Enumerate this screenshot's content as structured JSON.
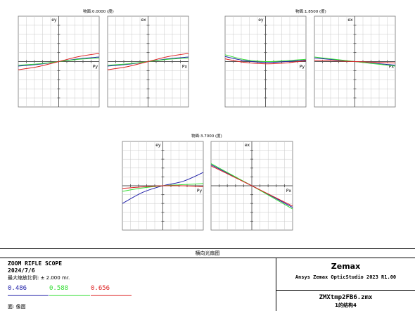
{
  "window_title": "横向光扇图",
  "plots": [
    {
      "title": "物面:0.0000 (度)",
      "panels": [
        {
          "axis_label": "ey",
          "pupil_label": "Py"
        },
        {
          "axis_label": "ex",
          "pupil_label": "Px"
        }
      ]
    },
    {
      "title": "物面:1.8500 (度)",
      "panels": [
        {
          "axis_label": "ey",
          "pupil_label": "Py"
        },
        {
          "axis_label": "ex",
          "pupil_label": "Px"
        }
      ]
    },
    {
      "title": "物面:3.7000 (度)",
      "panels": [
        {
          "axis_label": "ey",
          "pupil_label": "Py"
        },
        {
          "axis_label": "ex",
          "pupil_label": "Px"
        }
      ]
    }
  ],
  "info": {
    "system_name": "ZOOM RIFLE SCOPE",
    "date": "2024/7/6",
    "scale": "最大缩放比例: ± 2.000 mr.",
    "surface": "面: 像面",
    "wavelengths": [
      {
        "label": "0.486",
        "color": "#1f1fa8"
      },
      {
        "label": "0.588",
        "color": "#33dd33"
      },
      {
        "label": "0.656",
        "color": "#dd2222"
      }
    ],
    "company": "Zemax",
    "software": "Ansys Zemax OpticStudio 2023 R1.00",
    "filename": "ZMXtmp2FB6.zmx",
    "config": "1的结构4"
  },
  "chart_data": {
    "type": "line",
    "title": "横向光扇图",
    "xlabel": "Py / Px",
    "ylabel": "ey / ex",
    "xlim": [
      -1,
      1
    ],
    "ylim": [
      -2,
      2
    ],
    "units": "mr",
    "grid": true,
    "fields": [
      {
        "title": "物面:0.0000 (度)",
        "panels": [
          {
            "name": "ey vs Py",
            "series": [
              {
                "name": "0.486",
                "color": "#1f1fa8",
                "x": [
                  -1,
                  -0.5,
                  0,
                  0.5,
                  1
                ],
                "y": [
                  -0.2,
                  -0.12,
                  0,
                  0.12,
                  0.2
                ]
              },
              {
                "name": "0.588",
                "color": "#33dd33",
                "x": [
                  -1,
                  -0.5,
                  0,
                  0.5,
                  1
                ],
                "y": [
                  -0.16,
                  -0.1,
                  0,
                  0.1,
                  0.16
                ]
              },
              {
                "name": "0.656",
                "color": "#dd2222",
                "x": [
                  -1,
                  -0.5,
                  0,
                  0.5,
                  1
                ],
                "y": [
                  -0.36,
                  -0.22,
                  0,
                  0.22,
                  0.36
                ]
              }
            ]
          },
          {
            "name": "ex vs Px",
            "series": [
              {
                "name": "0.486",
                "color": "#1f1fa8",
                "x": [
                  -1,
                  -0.5,
                  0,
                  0.5,
                  1
                ],
                "y": [
                  -0.2,
                  -0.12,
                  0,
                  0.12,
                  0.2
                ]
              },
              {
                "name": "0.588",
                "color": "#33dd33",
                "x": [
                  -1,
                  -0.5,
                  0,
                  0.5,
                  1
                ],
                "y": [
                  -0.16,
                  -0.1,
                  0,
                  0.1,
                  0.16
                ]
              },
              {
                "name": "0.656",
                "color": "#dd2222",
                "x": [
                  -1,
                  -0.5,
                  0,
                  0.5,
                  1
                ],
                "y": [
                  -0.36,
                  -0.22,
                  0,
                  0.22,
                  0.36
                ]
              }
            ]
          }
        ]
      },
      {
        "title": "物面:1.8500 (度)",
        "panels": [
          {
            "name": "ey vs Py",
            "series": [
              {
                "name": "0.486",
                "color": "#1f1fa8",
                "x": [
                  -1,
                  -0.5,
                  0,
                  0.5,
                  1
                ],
                "y": [
                  0.22,
                  0.04,
                  -0.04,
                  0.0,
                  0.06
                ]
              },
              {
                "name": "0.588",
                "color": "#33dd33",
                "x": [
                  -1,
                  -0.5,
                  0,
                  0.5,
                  1
                ],
                "y": [
                  0.3,
                  0.08,
                  0.0,
                  0.04,
                  0.1
                ]
              },
              {
                "name": "0.656",
                "color": "#dd2222",
                "x": [
                  -1,
                  -0.5,
                  0,
                  0.5,
                  1
                ],
                "y": [
                  0.12,
                  -0.04,
                  -0.1,
                  -0.06,
                  0.04
                ]
              }
            ]
          },
          {
            "name": "ex vs Px",
            "series": [
              {
                "name": "0.486",
                "color": "#1f1fa8",
                "x": [
                  -1,
                  -0.5,
                  0,
                  0.5,
                  1
                ],
                "y": [
                  0.16,
                  0.08,
                  0,
                  -0.08,
                  -0.16
                ]
              },
              {
                "name": "0.588",
                "color": "#33dd33",
                "x": [
                  -1,
                  -0.5,
                  0,
                  0.5,
                  1
                ],
                "y": [
                  0.2,
                  0.1,
                  0,
                  -0.1,
                  -0.2
                ]
              },
              {
                "name": "0.656",
                "color": "#dd2222",
                "x": [
                  -1,
                  -0.5,
                  0,
                  0.5,
                  1
                ],
                "y": [
                  0.06,
                  0.03,
                  0,
                  -0.03,
                  -0.06
                ]
              }
            ]
          }
        ]
      },
      {
        "title": "物面:3.7000 (度)",
        "panels": [
          {
            "name": "ey vs Py",
            "series": [
              {
                "name": "0.486",
                "color": "#1f1fa8",
                "x": [
                  -1,
                  -0.5,
                  0,
                  0.5,
                  1
                ],
                "y": [
                  -0.8,
                  -0.3,
                  0,
                  0.2,
                  0.6
                ]
              },
              {
                "name": "0.588",
                "color": "#33dd33",
                "x": [
                  -1,
                  -0.5,
                  0,
                  0.5,
                  1
                ],
                "y": [
                  -0.25,
                  -0.1,
                  0,
                  0.05,
                  0.1
                ]
              },
              {
                "name": "0.656",
                "color": "#dd2222",
                "x": [
                  -1,
                  -0.5,
                  0,
                  0.5,
                  1
                ],
                "y": [
                  -0.12,
                  -0.05,
                  0,
                  0.0,
                  -0.04
                ]
              }
            ]
          },
          {
            "name": "ex vs Px",
            "series": [
              {
                "name": "0.486",
                "color": "#1f1fa8",
                "x": [
                  -1,
                  -0.5,
                  0,
                  0.5,
                  1
                ],
                "y": [
                  0.95,
                  0.48,
                  0,
                  -0.48,
                  -0.98
                ]
              },
              {
                "name": "0.588",
                "color": "#33dd33",
                "x": [
                  -1,
                  -0.5,
                  0,
                  0.5,
                  1
                ],
                "y": [
                  1.0,
                  0.5,
                  0,
                  -0.52,
                  -1.05
                ]
              },
              {
                "name": "0.656",
                "color": "#dd2222",
                "x": [
                  -1,
                  -0.5,
                  0,
                  0.5,
                  1
                ],
                "y": [
                  0.9,
                  0.45,
                  0,
                  -0.46,
                  -0.92
                ]
              }
            ]
          }
        ]
      }
    ]
  }
}
